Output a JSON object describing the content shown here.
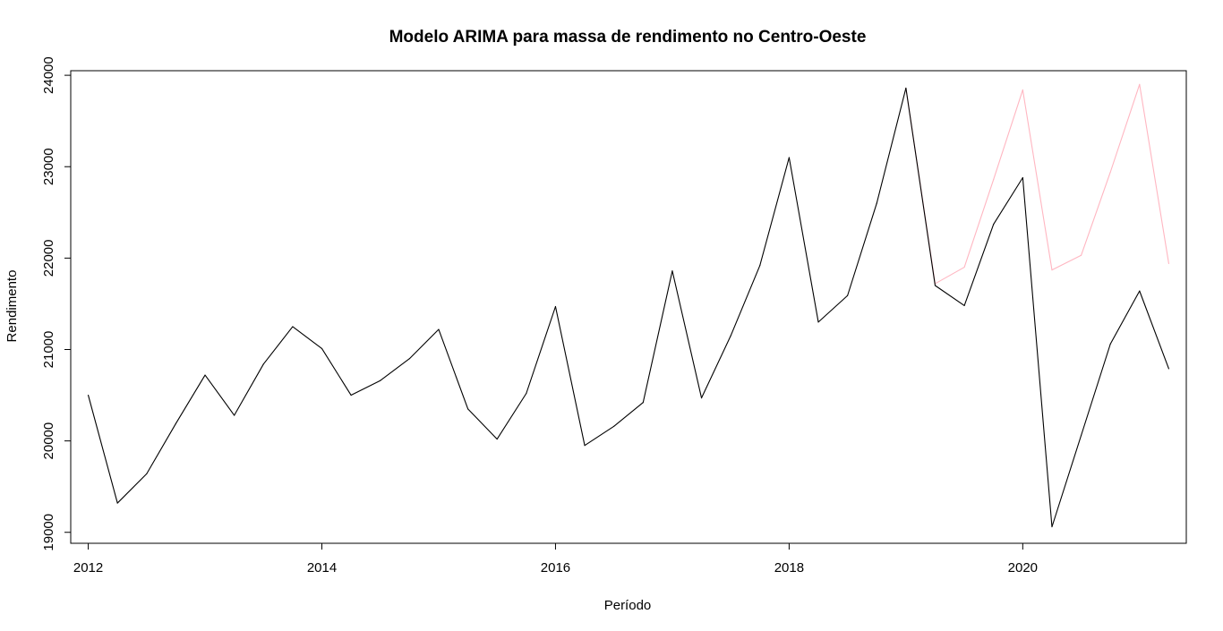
{
  "chart_data": {
    "type": "line",
    "title": "Modelo ARIMA para massa de rendimento no Centro-Oeste",
    "xlabel": "Período",
    "ylabel": "Rendimento",
    "xlim": [
      2011.85,
      2021.4
    ],
    "ylim": [
      18880,
      24050
    ],
    "x_ticks": [
      2012,
      2014,
      2016,
      2018,
      2020
    ],
    "x_tick_labels": [
      "2012",
      "2014",
      "2016",
      "2018",
      "2020"
    ],
    "y_ticks": [
      19000,
      20000,
      21000,
      22000,
      23000,
      24000
    ],
    "y_tick_labels": [
      "19000",
      "20000",
      "21000",
      "22000",
      "23000",
      "24000"
    ],
    "grid": false,
    "series": [
      {
        "color": "#000000",
        "x": [
          2012.0,
          2012.25,
          2012.5,
          2012.75,
          2013.0,
          2013.25,
          2013.5,
          2013.75,
          2014.0,
          2014.25,
          2014.5,
          2014.75,
          2015.0,
          2015.25,
          2015.5,
          2015.75,
          2016.0,
          2016.25,
          2016.5,
          2016.75,
          2017.0,
          2017.25,
          2017.5,
          2017.75,
          2018.0,
          2018.25,
          2018.5,
          2018.75,
          2019.0,
          2019.25,
          2019.5,
          2019.75,
          2020.0,
          2020.25,
          2020.5,
          2020.75,
          2021.0,
          2021.25
        ],
        "y": [
          20500,
          19320,
          19640,
          20190,
          20720,
          20280,
          20840,
          21250,
          21010,
          20500,
          20660,
          20900,
          21220,
          20350,
          20020,
          20520,
          21470,
          19950,
          20160,
          20420,
          21860,
          20470,
          21150,
          21920,
          23100,
          21300,
          21590,
          22600,
          23860,
          21700,
          21480,
          22370,
          22880,
          19060,
          20060,
          21060,
          21640,
          20790
        ]
      },
      {
        "color": "#ffb6c1",
        "x": [
          2019.0,
          2019.25,
          2019.5,
          2019.75,
          2020.0,
          2020.25,
          2020.5,
          2020.75,
          2021.0,
          2021.25
        ],
        "y": [
          23860,
          21720,
          21900,
          22860,
          23840,
          21870,
          22030,
          22940,
          23900,
          21940
        ]
      }
    ]
  }
}
